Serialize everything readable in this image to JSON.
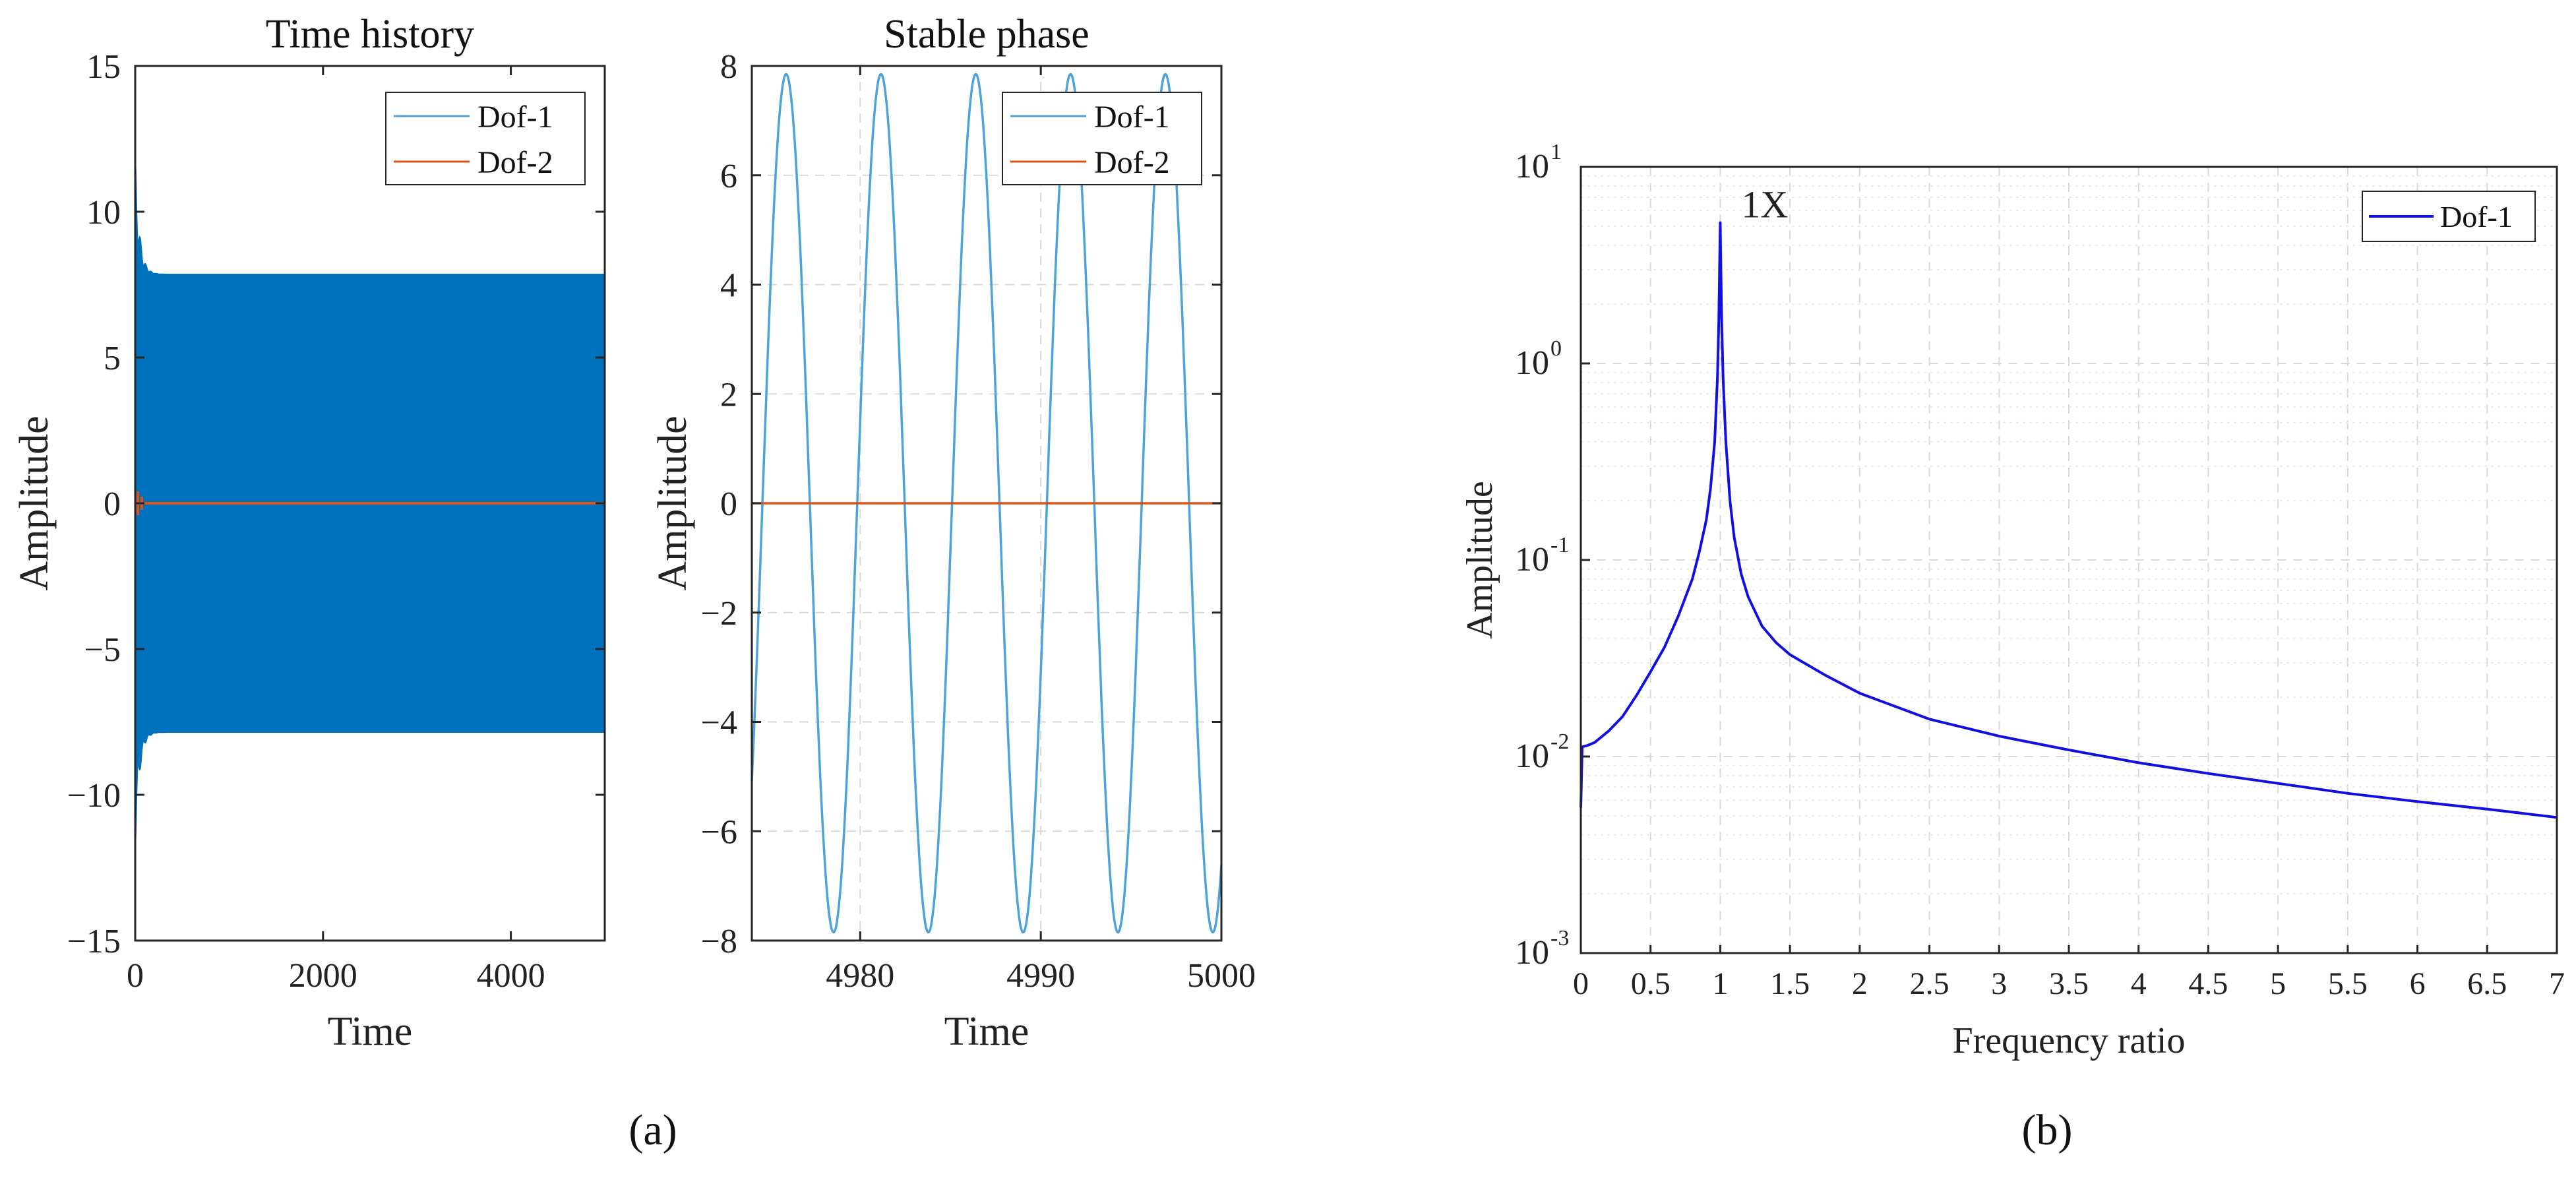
{
  "panels": {
    "a": "(a)",
    "b": "(b)"
  },
  "chart_data": [
    {
      "id": "time-history",
      "type": "line",
      "title": "Time history",
      "xlabel": "Time",
      "ylabel": "Amplitude",
      "xlim": [
        0,
        5000
      ],
      "ylim": [
        -15,
        15
      ],
      "xticks": [
        0,
        2000,
        4000
      ],
      "yticks": [
        -15,
        -10,
        -5,
        0,
        5,
        10,
        15
      ],
      "xtick_labels": [
        "0",
        "2000",
        "4000"
      ],
      "ytick_labels": [
        "−15",
        "−10",
        "−5",
        "0",
        "5",
        "10",
        "15"
      ],
      "grid": false,
      "legend": "top-right",
      "steady_amplitude": 7.85,
      "transient_peak": 12,
      "series": [
        {
          "name": "Dof-1",
          "color": "#0072BD",
          "legend_color": "#4DA3D8",
          "envelope": true
        },
        {
          "name": "Dof-2",
          "color": "#D95319",
          "values_constant": 0
        }
      ]
    },
    {
      "id": "stable-phase",
      "type": "line",
      "title": "Stable phase",
      "xlabel": "Time",
      "ylabel": "Amplitude",
      "xlim": [
        4974,
        5000
      ],
      "ylim": [
        -8,
        8
      ],
      "xticks": [
        4980,
        4990,
        5000
      ],
      "yticks": [
        -8,
        -6,
        -4,
        -2,
        0,
        2,
        4,
        6,
        8
      ],
      "xtick_labels": [
        "4980",
        "4990",
        "5000"
      ],
      "ytick_labels": [
        "−8",
        "−6",
        "−4",
        "−2",
        "0",
        "2",
        "4",
        "6",
        "8"
      ],
      "grid": true,
      "legend": "top-right",
      "series": [
        {
          "name": "Dof-1",
          "color": "#4DA3D8",
          "amplitude": 7.85,
          "period": 5.25,
          "peak_time": 4975.9
        },
        {
          "name": "Dof-2",
          "color": "#D95319",
          "values_constant": 0
        }
      ]
    },
    {
      "id": "frequency-response",
      "type": "line",
      "xlabel": "Frequency ratio",
      "ylabel": "Amplitude",
      "yscale": "log",
      "xlim": [
        0,
        7
      ],
      "ylim": [
        0.001,
        10
      ],
      "xticks": [
        0,
        0.5,
        1,
        1.5,
        2,
        2.5,
        3,
        3.5,
        4,
        4.5,
        5,
        5.5,
        6,
        6.5,
        7
      ],
      "xtick_labels": [
        "0",
        "0.5",
        "1",
        "1.5",
        "2",
        "2.5",
        "3",
        "3.5",
        "4",
        "4.5",
        "5",
        "5.5",
        "6",
        "6.5",
        "7"
      ],
      "yticks": [
        0.001,
        0.01,
        0.1,
        1,
        10
      ],
      "ytick_labels": [
        {
          "base": "10",
          "exp": "-3"
        },
        {
          "base": "10",
          "exp": "-2"
        },
        {
          "base": "10",
          "exp": "-1"
        },
        {
          "base": "10",
          "exp": "0"
        },
        {
          "base": "10",
          "exp": "1"
        }
      ],
      "grid": true,
      "legend": "top-right",
      "annotation": {
        "text": "1X",
        "x": 1.0,
        "y": 5.2
      },
      "series": [
        {
          "name": "Dof-1",
          "color": "#1010E0",
          "x": [
            0,
            0.01,
            0.05,
            0.1,
            0.2,
            0.3,
            0.4,
            0.5,
            0.6,
            0.7,
            0.8,
            0.85,
            0.9,
            0.93,
            0.96,
            0.98,
            0.99,
            1.0,
            1.01,
            1.02,
            1.04,
            1.07,
            1.1,
            1.15,
            1.2,
            1.3,
            1.4,
            1.5,
            1.75,
            2,
            2.5,
            3,
            3.5,
            4,
            4.5,
            5,
            5.5,
            6,
            6.5,
            7
          ],
          "values": [
            0.0055,
            0.0112,
            0.0114,
            0.0118,
            0.0135,
            0.016,
            0.0205,
            0.027,
            0.036,
            0.052,
            0.08,
            0.11,
            0.16,
            0.23,
            0.4,
            0.85,
            1.7,
            5.2,
            1.7,
            0.85,
            0.4,
            0.2,
            0.13,
            0.085,
            0.065,
            0.046,
            0.038,
            0.033,
            0.026,
            0.021,
            0.0155,
            0.0127,
            0.0108,
            0.0093,
            0.0082,
            0.0073,
            0.0065,
            0.0059,
            0.0054,
            0.0049
          ]
        }
      ]
    }
  ]
}
